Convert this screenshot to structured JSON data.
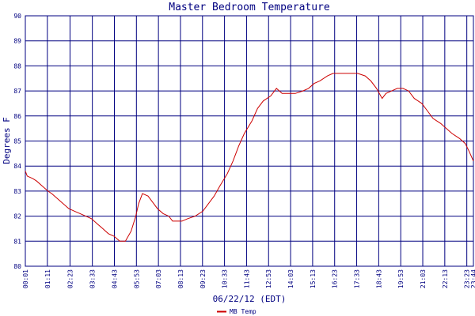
{
  "chart_data": {
    "type": "line",
    "title": "Master Bedroom Temperature",
    "xlabel": "06/22/12 (EDT)",
    "ylabel": "Degrees F",
    "ylim": [
      80,
      90
    ],
    "y_ticks": [
      "80",
      "81",
      "82",
      "83",
      "84",
      "85",
      "86",
      "87",
      "88",
      "89",
      "90"
    ],
    "x_tick_labels": [
      "00:01",
      "01:11",
      "02:23",
      "03:33",
      "04:43",
      "05:53",
      "07:03",
      "08:13",
      "09:23",
      "10:33",
      "11:43",
      "12:53",
      "14:03",
      "15:13",
      "16:23",
      "17:33",
      "18:43",
      "19:53",
      "21:03",
      "22:13",
      "23:23",
      "23:44"
    ],
    "grid": true,
    "legend_position": "bottom-center",
    "colors": {
      "series": "#cc0000",
      "grid": "#000080",
      "axis_text": "#000080"
    },
    "series": [
      {
        "name": "MB Temp",
        "x": [
          0,
          0.1,
          0.4,
          0.6,
          0.9,
          1.2,
          1.4,
          1.7,
          2.0,
          2.3,
          2.6,
          2.9,
          3.2,
          3.5,
          3.8,
          4.1,
          4.4,
          4.7,
          5.0,
          5.3,
          5.6,
          5.85,
          6.0,
          6.2,
          6.5,
          6.8,
          7.0,
          7.3,
          7.6,
          7.8,
          8.0,
          8.3,
          8.6,
          9.0,
          9.4,
          9.7,
          10.0,
          10.3,
          10.7,
          11.0,
          11.3,
          11.6,
          12.0,
          12.3,
          12.6,
          13.0,
          13.3,
          13.6,
          14.0,
          14.3,
          14.7,
          15.0,
          15.3,
          15.6,
          16.0,
          16.3,
          16.6,
          17.0,
          17.3,
          17.6,
          18.0,
          18.3,
          18.6,
          18.9,
          19.1,
          19.4,
          19.7,
          20.0,
          20.3,
          20.6,
          21.0,
          21.3,
          21.6,
          22.0,
          22.3,
          22.6,
          23.0,
          23.3,
          23.5,
          23.733
        ],
        "values": [
          83.8,
          83.6,
          83.5,
          83.4,
          83.2,
          83.0,
          82.9,
          82.7,
          82.5,
          82.3,
          82.2,
          82.1,
          82.0,
          81.9,
          81.7,
          81.5,
          81.3,
          81.2,
          81.0,
          81.0,
          81.4,
          82.0,
          82.5,
          82.9,
          82.8,
          82.5,
          82.3,
          82.1,
          82.0,
          81.8,
          81.8,
          81.8,
          81.9,
          82.0,
          82.2,
          82.5,
          82.8,
          83.2,
          83.7,
          84.2,
          84.8,
          85.3,
          85.8,
          86.3,
          86.6,
          86.8,
          87.1,
          86.9,
          86.9,
          86.9,
          87.0,
          87.1,
          87.3,
          87.4,
          87.6,
          87.7,
          87.7,
          87.7,
          87.7,
          87.7,
          87.6,
          87.4,
          87.1,
          86.7,
          86.9,
          87.0,
          87.1,
          87.1,
          87.0,
          86.7,
          86.5,
          86.2,
          85.9,
          85.7,
          85.5,
          85.3,
          85.1,
          84.9,
          84.6,
          84.2
        ]
      }
    ]
  }
}
